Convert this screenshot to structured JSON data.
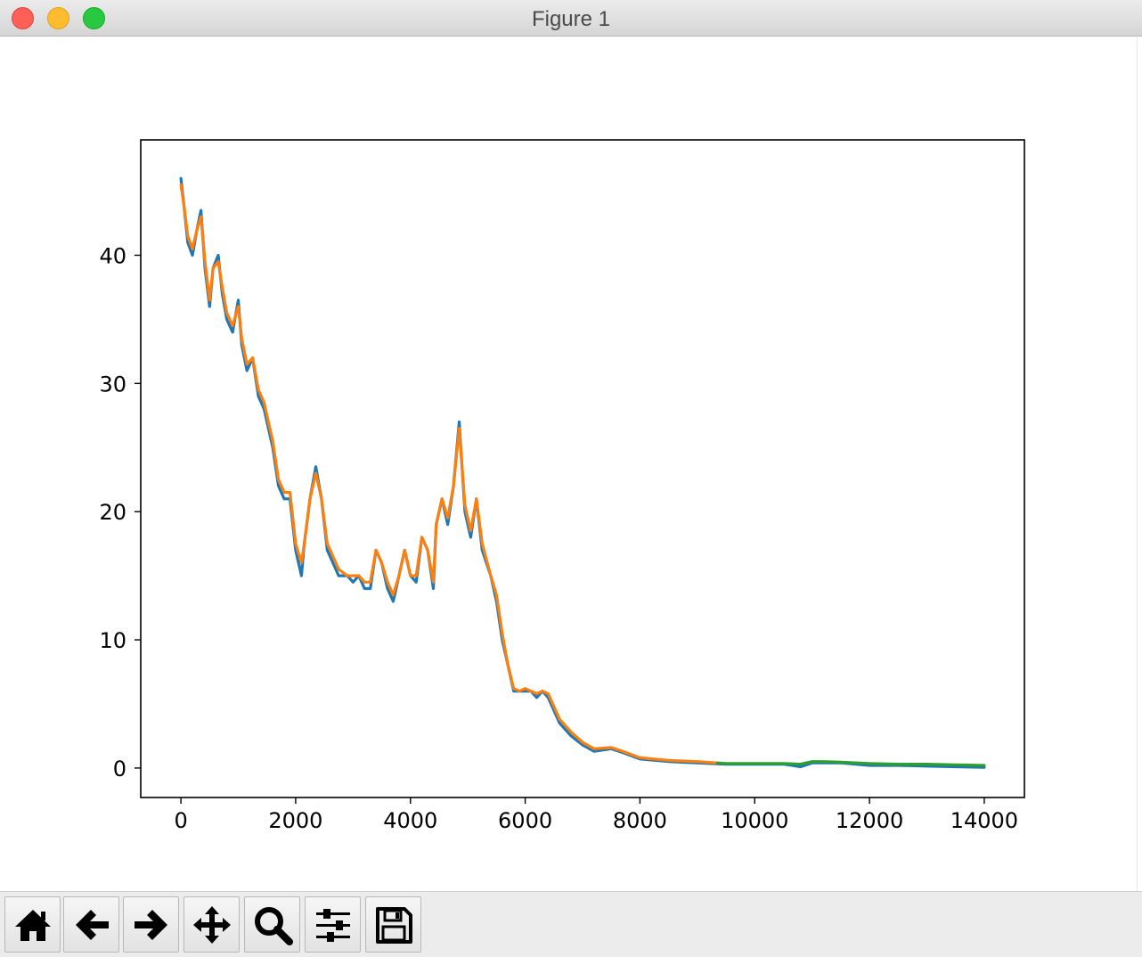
{
  "window": {
    "title": "Figure 1"
  },
  "toolbar": {
    "buttons": [
      {
        "name": "home-button",
        "icon": "home-icon"
      },
      {
        "name": "back-button",
        "icon": "arrow-left-icon"
      },
      {
        "name": "forward-button",
        "icon": "arrow-right-icon"
      },
      {
        "name": "pan-button",
        "icon": "move-icon"
      },
      {
        "name": "zoom-button",
        "icon": "magnifier-icon"
      },
      {
        "name": "configure-subplots-button",
        "icon": "sliders-icon"
      },
      {
        "name": "save-button",
        "icon": "floppy-disk-icon"
      }
    ]
  },
  "colors": {
    "series_blue": "#1f77b4",
    "series_orange": "#ff7f0e",
    "series_green": "#2ca02c"
  },
  "chart_data": {
    "type": "line",
    "title": "",
    "xlabel": "",
    "ylabel": "",
    "xlim": [
      -700,
      14700
    ],
    "ylim": [
      -2.3,
      49
    ],
    "grid": false,
    "legend": "none",
    "xticks": [
      0,
      2000,
      4000,
      6000,
      8000,
      10000,
      12000,
      14000
    ],
    "yticks": [
      0,
      10,
      20,
      30,
      40
    ],
    "series": [
      {
        "color": "#1f77b4",
        "x": [
          0,
          50,
          120,
          200,
          280,
          350,
          420,
          500,
          560,
          650,
          720,
          800,
          900,
          1000,
          1060,
          1150,
          1250,
          1350,
          1450,
          1500,
          1600,
          1700,
          1800,
          1900,
          2000,
          2100,
          2150,
          2250,
          2350,
          2450,
          2550,
          2650,
          2750,
          2900,
          3000,
          3100,
          3200,
          3300,
          3400,
          3500,
          3600,
          3700,
          3800,
          3900,
          4000,
          4100,
          4200,
          4300,
          4400,
          4450,
          4550,
          4650,
          4750,
          4850,
          4950,
          5050,
          5150,
          5250,
          5400,
          5500,
          5600,
          5700,
          5800,
          5900,
          6000,
          6100,
          6200,
          6300,
          6400,
          6500,
          6600,
          6800,
          7000,
          7200,
          7500,
          7700,
          8000,
          8500,
          9000,
          9500,
          10000,
          10500,
          10800,
          11000,
          11500,
          12000,
          12500,
          13000,
          13500,
          14000
        ],
        "y": [
          46,
          44,
          41,
          40,
          42,
          43.5,
          39,
          36,
          39,
          40,
          37,
          35,
          34,
          36.5,
          33,
          31,
          32,
          29,
          28,
          27,
          25,
          22,
          21,
          21,
          17,
          15,
          17.5,
          21,
          23.5,
          21,
          17,
          16,
          15,
          15,
          14.5,
          15,
          14,
          14,
          17,
          16,
          14,
          13,
          15,
          17,
          15,
          14.5,
          18,
          17,
          14,
          19,
          21,
          19,
          22,
          27,
          20,
          18,
          21,
          17,
          15,
          13,
          10,
          8,
          6,
          6,
          6,
          6,
          5.5,
          6,
          5.5,
          4.5,
          3.5,
          2.5,
          1.8,
          1.3,
          1.5,
          1.2,
          0.7,
          0.5,
          0.4,
          0.3,
          0.3,
          0.3,
          0.1,
          0.4,
          0.4,
          0.2,
          0.2,
          0.15,
          0.1,
          0.05
        ]
      },
      {
        "color": "#ff7f0e",
        "x": [
          0,
          50,
          120,
          200,
          280,
          350,
          420,
          500,
          560,
          650,
          720,
          800,
          900,
          1000,
          1060,
          1150,
          1250,
          1350,
          1450,
          1500,
          1600,
          1700,
          1800,
          1900,
          2000,
          2100,
          2150,
          2250,
          2350,
          2450,
          2550,
          2650,
          2750,
          2900,
          3000,
          3100,
          3200,
          3300,
          3400,
          3500,
          3600,
          3700,
          3800,
          3900,
          4000,
          4100,
          4200,
          4300,
          4400,
          4450,
          4550,
          4650,
          4750,
          4850,
          4950,
          5050,
          5150,
          5250,
          5400,
          5500,
          5600,
          5700,
          5800,
          5900,
          6000,
          6100,
          6200,
          6300,
          6400,
          6500,
          6600,
          6800,
          7000,
          7200,
          7500,
          7700,
          8000,
          8500,
          9000,
          9350
        ],
        "y": [
          45.5,
          44,
          41.5,
          40.5,
          42,
          43,
          39.5,
          36.5,
          39,
          39.5,
          37.5,
          35.5,
          34.5,
          36,
          33.5,
          31.5,
          32,
          29.5,
          28.5,
          27.5,
          25.5,
          22.5,
          21.5,
          21.5,
          17.5,
          16,
          17.5,
          21,
          23,
          21,
          17.5,
          16.5,
          15.5,
          15,
          15,
          15,
          14.5,
          14.5,
          17,
          16,
          14.5,
          13.5,
          15,
          17,
          15,
          15,
          18,
          17,
          14.5,
          19,
          21,
          19.5,
          22,
          26.5,
          20.5,
          18.5,
          21,
          17.5,
          15,
          13.5,
          10.5,
          8,
          6.2,
          6,
          6.2,
          6,
          5.8,
          6,
          5.8,
          4.8,
          3.8,
          2.8,
          2,
          1.5,
          1.6,
          1.3,
          0.8,
          0.6,
          0.5,
          0.4
        ]
      },
      {
        "color": "#2ca02c",
        "x": [
          9350,
          9500,
          10000,
          10500,
          10800,
          11000,
          11200,
          11500,
          12000,
          12500,
          13000,
          13500,
          14000
        ],
        "y": [
          0.4,
          0.35,
          0.35,
          0.35,
          0.3,
          0.5,
          0.5,
          0.45,
          0.35,
          0.3,
          0.3,
          0.25,
          0.2
        ]
      }
    ]
  }
}
